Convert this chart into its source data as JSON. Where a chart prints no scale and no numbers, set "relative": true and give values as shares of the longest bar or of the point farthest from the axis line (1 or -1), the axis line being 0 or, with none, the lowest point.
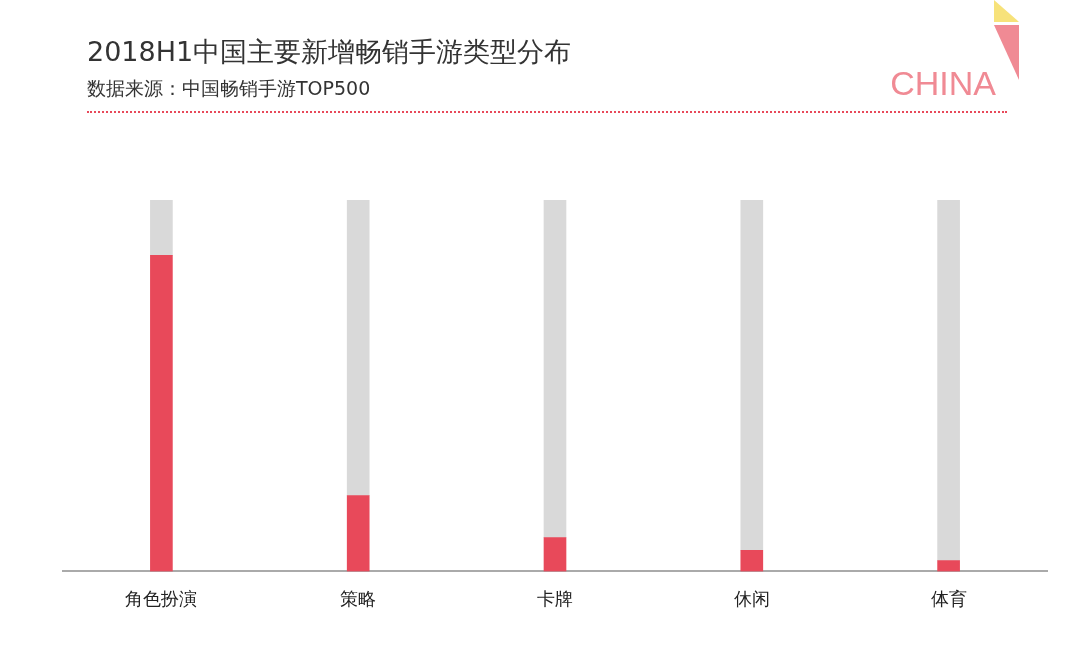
{
  "chart_data": {
    "type": "bar",
    "title": "2018H1中国主要新增畅销手游类型分布",
    "subtitle": "数据来源：中国畅销手游TOP500",
    "annotations": [
      "CHINA"
    ],
    "relative": true,
    "stacked": true,
    "categories": [
      "角色扮演",
      "策略",
      "卡牌",
      "休闲",
      "体育"
    ],
    "series": [
      {
        "color": "#e8495a",
        "values": [
          0.851,
          0.204,
          0.091,
          0.057,
          0.029
        ]
      },
      {
        "color": "#d9d9d9",
        "values": [
          0.149,
          0.796,
          0.909,
          0.943,
          0.971
        ]
      }
    ]
  }
}
